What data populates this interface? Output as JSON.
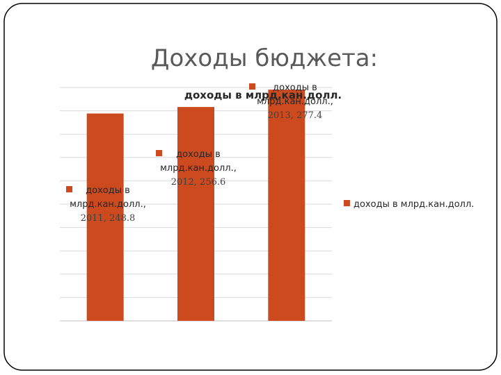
{
  "slide": {
    "title": "Доходы бюджета:"
  },
  "chart_data": {
    "type": "bar",
    "title": "доходы в млрд.кан.долл.",
    "categories": [
      "2011",
      "2012",
      "2013"
    ],
    "series": [
      {
        "name": "доходы в млрд.кан.долл.",
        "values": [
          248.8,
          256.6,
          277.4
        ]
      }
    ],
    "data_labels": [
      [
        "доходы в",
        "млрд.кан.долл.,",
        "2011, 248.8"
      ],
      [
        "доходы в",
        "млрд.кан.долл.,",
        "2012, 256.6"
      ],
      [
        "доходы в",
        "млрд.кан.долл.,",
        "2013, 277.4"
      ]
    ],
    "legend": {
      "position": "right",
      "entries": [
        "доходы в млрд.кан.долл."
      ]
    },
    "ylim": [
      0,
      280
    ],
    "grid": true,
    "colors": {
      "bar": "#CC4A1E",
      "grid": "#d9d9d9",
      "frame": "#000000"
    }
  }
}
